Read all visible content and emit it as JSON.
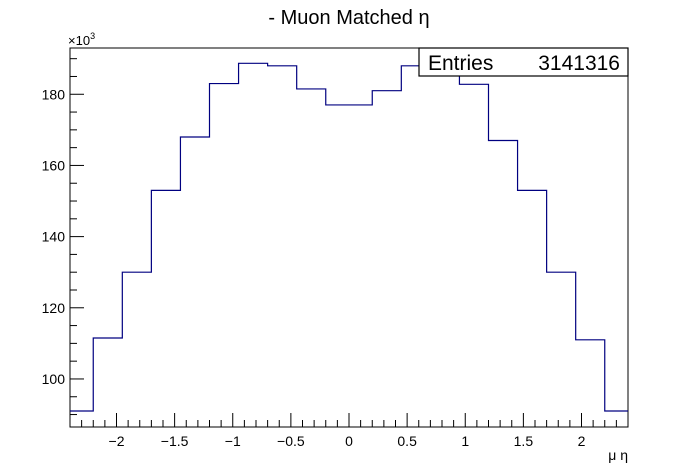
{
  "chart_data": {
    "type": "bar",
    "title": "- Muon Matched η",
    "xlabel": "μ η",
    "ylabel": "",
    "y_multiplier": "×10",
    "y_multiplier_exponent": "3",
    "stats_box": {
      "label": "Entries",
      "value": "3141316"
    },
    "xlim": [
      -2.4,
      2.4
    ],
    "ylim": [
      86.5,
      193
    ],
    "x_ticks": [
      -2,
      -1.5,
      -1,
      -0.5,
      0,
      0.5,
      1,
      1.5,
      2
    ],
    "x_tick_labels": [
      "−2",
      "−1.5",
      "−1",
      "−0.5",
      "0",
      "0.5",
      "1",
      "1.5",
      "2"
    ],
    "y_ticks": [
      100,
      120,
      140,
      160,
      180
    ],
    "y_tick_labels": [
      "100",
      "120",
      "140",
      "160",
      "180"
    ],
    "bin_edges": [
      -2.4,
      -2.2,
      -1.95,
      -1.7,
      -1.45,
      -1.2,
      -0.95,
      -0.7,
      -0.45,
      -0.2,
      0.2,
      0.45,
      0.7,
      0.95,
      1.2,
      1.45,
      1.7,
      1.95,
      2.2,
      2.4
    ],
    "values": [
      91,
      111.5,
      130,
      153,
      168,
      183,
      188.7,
      188,
      181.5,
      177,
      181,
      188,
      189,
      182.8,
      167,
      153,
      130,
      111,
      91
    ],
    "grid": false,
    "line_color": "#000080",
    "frame_color": "#000000"
  }
}
